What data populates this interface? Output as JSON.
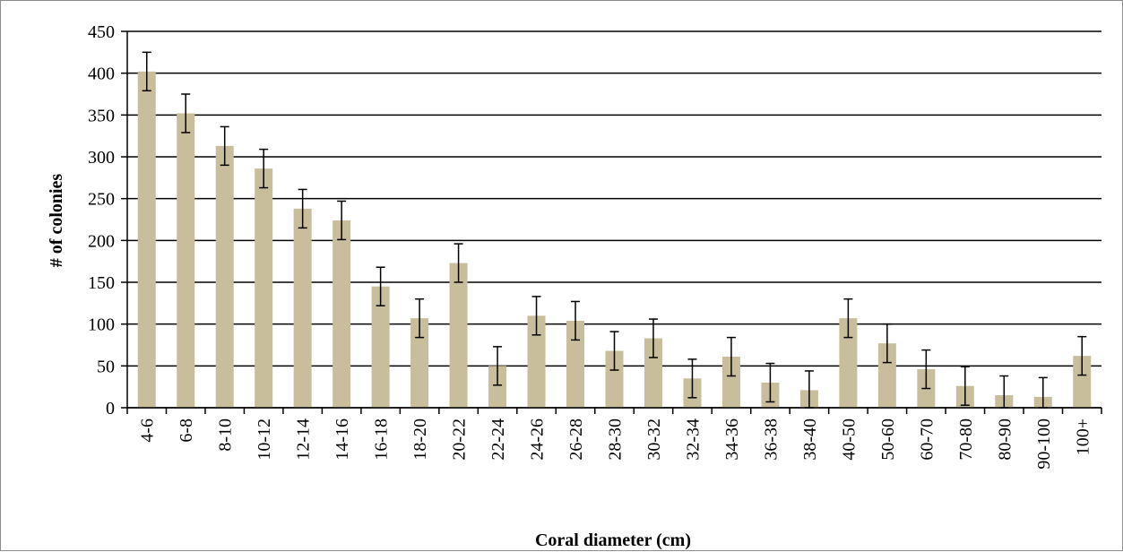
{
  "chart_data": {
    "type": "bar",
    "title": "",
    "xlabel": "Coral diameter (cm)",
    "ylabel": "# of colonies",
    "ylim": [
      0,
      450
    ],
    "yticks": [
      "0",
      "50",
      "100",
      "150",
      "200",
      "250",
      "300",
      "350",
      "400",
      "450"
    ],
    "grid": "horizontal",
    "legend": "none",
    "bar_color": "#c9be9b",
    "categories": [
      "4-6",
      "6-8",
      "8-10",
      "10-12",
      "12-14",
      "14-16",
      "16-18",
      "18-20",
      "20-22",
      "22-24",
      "24-26",
      "26-28",
      "28-30",
      "30-32",
      "32-34",
      "34-36",
      "36-38",
      "38-40",
      "40-50",
      "50-60",
      "60-70",
      "70-80",
      "80-90",
      "90-100",
      "100+"
    ],
    "values": [
      402,
      352,
      313,
      286,
      238,
      224,
      145,
      107,
      173,
      50,
      110,
      104,
      68,
      83,
      35,
      61,
      30,
      21,
      107,
      77,
      46,
      26,
      15,
      13,
      62
    ],
    "error": [
      23,
      23,
      23,
      23,
      23,
      23,
      23,
      23,
      23,
      23,
      23,
      23,
      23,
      23,
      23,
      23,
      23,
      23,
      23,
      23,
      23,
      23,
      23,
      23,
      23
    ]
  }
}
